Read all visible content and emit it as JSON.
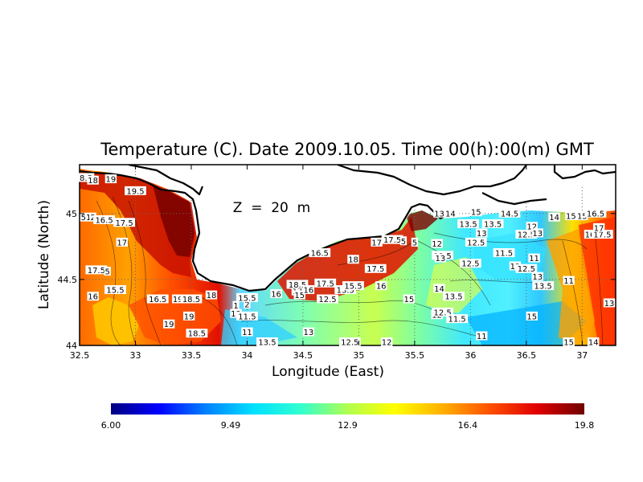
{
  "chart_data": {
    "type": "heatmap",
    "title": "Temperature (C). Date 2009.10.05. Time 00(h):00(m) GMT",
    "annotation": "Z  =  20  m",
    "xlabel": "Longitude (East)",
    "ylabel": "Latitude (North)",
    "xlim": [
      32.5,
      37.3
    ],
    "ylim": [
      44.0,
      45.37
    ],
    "x_ticks": [
      32.5,
      33,
      33.5,
      34,
      34.5,
      35,
      35.5,
      36,
      36.5,
      37
    ],
    "x_tick_labels": [
      "32.5",
      "33",
      "33.5",
      "34",
      "34.5",
      "35",
      "35.5",
      "36",
      "36.5",
      "37"
    ],
    "y_ticks": [
      44,
      44.5,
      45
    ],
    "y_tick_labels": [
      "44",
      "44.5",
      "45"
    ],
    "grid": true,
    "colorbar": {
      "min": 6.0,
      "max": 19.8,
      "ticks": [
        6.0,
        9.49,
        12.9,
        16.4,
        19.8
      ],
      "tick_labels": [
        "6.00",
        "9.49",
        "12.9",
        "16.4",
        "19.8"
      ],
      "colors": [
        "#000080",
        "#0000ff",
        "#0080ff",
        "#00e0ff",
        "#30ffd0",
        "#b0ff50",
        "#ffff00",
        "#ffb000",
        "#ff5000",
        "#e00000",
        "#700000"
      ]
    },
    "contour_labels": [
      {
        "lon": 32.55,
        "lat": 45.27,
        "text": "8.5"
      },
      {
        "lon": 32.62,
        "lat": 45.25,
        "text": "18"
      },
      {
        "lon": 32.78,
        "lat": 45.26,
        "text": "19"
      },
      {
        "lon": 33.0,
        "lat": 45.17,
        "text": "19.5"
      },
      {
        "lon": 32.55,
        "lat": 44.97,
        "text": "51"
      },
      {
        "lon": 32.62,
        "lat": 44.97,
        "text": "2"
      },
      {
        "lon": 32.72,
        "lat": 44.95,
        "text": "16.5"
      },
      {
        "lon": 32.9,
        "lat": 44.93,
        "text": "17.5"
      },
      {
        "lon": 32.88,
        "lat": 44.78,
        "text": "17"
      },
      {
        "lon": 32.65,
        "lat": 44.57,
        "text": "17.5"
      },
      {
        "lon": 32.75,
        "lat": 44.56,
        "text": "5"
      },
      {
        "lon": 32.82,
        "lat": 44.42,
        "text": "15.5"
      },
      {
        "lon": 32.62,
        "lat": 44.37,
        "text": "16"
      },
      {
        "lon": 33.2,
        "lat": 44.35,
        "text": "16.5"
      },
      {
        "lon": 33.38,
        "lat": 44.35,
        "text": "19"
      },
      {
        "lon": 33.5,
        "lat": 44.35,
        "text": "18.5"
      },
      {
        "lon": 33.68,
        "lat": 44.38,
        "text": "18"
      },
      {
        "lon": 33.48,
        "lat": 44.22,
        "text": "19"
      },
      {
        "lon": 33.3,
        "lat": 44.16,
        "text": "19"
      },
      {
        "lon": 33.55,
        "lat": 44.09,
        "text": "18.5"
      },
      {
        "lon": 33.9,
        "lat": 44.3,
        "text": "1"
      },
      {
        "lon": 34.0,
        "lat": 44.31,
        "text": "2"
      },
      {
        "lon": 34.0,
        "lat": 44.36,
        "text": "15.5"
      },
      {
        "lon": 33.9,
        "lat": 44.24,
        "text": "13"
      },
      {
        "lon": 34.0,
        "lat": 44.22,
        "text": "11.5"
      },
      {
        "lon": 34.0,
        "lat": 44.1,
        "text": "11"
      },
      {
        "lon": 34.18,
        "lat": 44.0,
        "text": "13.5"
      },
      {
        "lon": 34.26,
        "lat": 44.39,
        "text": "16"
      },
      {
        "lon": 34.45,
        "lat": 44.41,
        "text": "17"
      },
      {
        "lon": 34.45,
        "lat": 44.46,
        "text": "18.5"
      },
      {
        "lon": 34.47,
        "lat": 44.38,
        "text": "15"
      },
      {
        "lon": 34.55,
        "lat": 44.42,
        "text": "16"
      },
      {
        "lon": 34.7,
        "lat": 44.47,
        "text": "17.5"
      },
      {
        "lon": 34.72,
        "lat": 44.35,
        "text": "12.5"
      },
      {
        "lon": 34.88,
        "lat": 44.42,
        "text": "13.5"
      },
      {
        "lon": 34.95,
        "lat": 44.45,
        "text": "15.5"
      },
      {
        "lon": 35.2,
        "lat": 44.45,
        "text": "16"
      },
      {
        "lon": 35.45,
        "lat": 44.35,
        "text": "15"
      },
      {
        "lon": 34.65,
        "lat": 44.7,
        "text": "16.5"
      },
      {
        "lon": 34.95,
        "lat": 44.65,
        "text": "18"
      },
      {
        "lon": 35.15,
        "lat": 44.58,
        "text": "17.5"
      },
      {
        "lon": 35.16,
        "lat": 44.78,
        "text": "17"
      },
      {
        "lon": 35.3,
        "lat": 44.8,
        "text": "17.5"
      },
      {
        "lon": 35.4,
        "lat": 44.79,
        "text": "5"
      },
      {
        "lon": 35.5,
        "lat": 44.78,
        "text": "5"
      },
      {
        "lon": 34.55,
        "lat": 44.1,
        "text": "13"
      },
      {
        "lon": 34.92,
        "lat": 44.0,
        "text": "12.5"
      },
      {
        "lon": 35.25,
        "lat": 44.0,
        "text": "12"
      },
      {
        "lon": 35.7,
        "lat": 44.77,
        "text": "12"
      },
      {
        "lon": 35.75,
        "lat": 44.68,
        "text": "12.5"
      },
      {
        "lon": 35.73,
        "lat": 44.66,
        "text": "13"
      },
      {
        "lon": 35.72,
        "lat": 44.43,
        "text": "14"
      },
      {
        "lon": 35.85,
        "lat": 44.37,
        "text": "13.5"
      },
      {
        "lon": 35.7,
        "lat": 44.23,
        "text": "12"
      },
      {
        "lon": 35.75,
        "lat": 44.25,
        "text": "12.5"
      },
      {
        "lon": 35.88,
        "lat": 44.2,
        "text": "11.5"
      },
      {
        "lon": 36.1,
        "lat": 44.07,
        "text": "11"
      },
      {
        "lon": 35.72,
        "lat": 45.0,
        "text": "13"
      },
      {
        "lon": 35.82,
        "lat": 45.0,
        "text": "14"
      },
      {
        "lon": 36.05,
        "lat": 45.01,
        "text": "15"
      },
      {
        "lon": 36.35,
        "lat": 45.0,
        "text": "14.5"
      },
      {
        "lon": 35.98,
        "lat": 44.92,
        "text": "13.5"
      },
      {
        "lon": 36.2,
        "lat": 44.92,
        "text": "13.5"
      },
      {
        "lon": 36.1,
        "lat": 44.85,
        "text": "13"
      },
      {
        "lon": 36.05,
        "lat": 44.78,
        "text": "12.5"
      },
      {
        "lon": 36.3,
        "lat": 44.7,
        "text": "11.5"
      },
      {
        "lon": 36.0,
        "lat": 44.62,
        "text": "12.5"
      },
      {
        "lon": 36.55,
        "lat": 44.9,
        "text": "12"
      },
      {
        "lon": 36.5,
        "lat": 44.84,
        "text": "12.5"
      },
      {
        "lon": 36.6,
        "lat": 44.85,
        "text": "13"
      },
      {
        "lon": 36.4,
        "lat": 44.6,
        "text": "12"
      },
      {
        "lon": 36.5,
        "lat": 44.58,
        "text": "12.5"
      },
      {
        "lon": 36.57,
        "lat": 44.66,
        "text": "11"
      },
      {
        "lon": 36.6,
        "lat": 44.52,
        "text": "13"
      },
      {
        "lon": 36.65,
        "lat": 44.45,
        "text": "13.5"
      },
      {
        "lon": 36.88,
        "lat": 44.49,
        "text": "11"
      },
      {
        "lon": 36.75,
        "lat": 44.97,
        "text": "14"
      },
      {
        "lon": 36.9,
        "lat": 44.98,
        "text": "15"
      },
      {
        "lon": 37.0,
        "lat": 44.98,
        "text": "15"
      },
      {
        "lon": 37.12,
        "lat": 45.0,
        "text": "16.5"
      },
      {
        "lon": 37.07,
        "lat": 44.84,
        "text": "16"
      },
      {
        "lon": 37.18,
        "lat": 44.84,
        "text": "17.5"
      },
      {
        "lon": 37.15,
        "lat": 44.89,
        "text": "17"
      },
      {
        "lon": 36.55,
        "lat": 44.22,
        "text": "15"
      },
      {
        "lon": 36.88,
        "lat": 44.0,
        "text": "15"
      },
      {
        "lon": 37.1,
        "lat": 44.0,
        "text": "14"
      },
      {
        "lon": 37.25,
        "lat": 44.32,
        "text": "13"
      }
    ]
  }
}
